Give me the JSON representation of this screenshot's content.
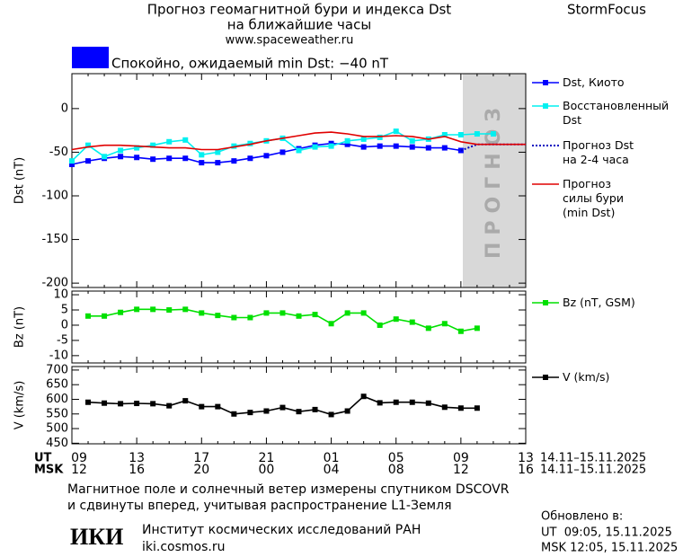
{
  "header": {
    "title_lines": [
      "Прогноз геомагнитной бури и индекса Dst",
      "на ближайшие часы"
    ],
    "site": "www.spaceweather.ru",
    "brand": "StormFocus",
    "status": "Спокойно, ожидаемый min Dst: −40 nT",
    "status_color": "#0000ff"
  },
  "forecast_label": "ПРОГНОЗ",
  "x_axis": {
    "rows": [
      {
        "name": "UT",
        "labels": [
          "09",
          null,
          null,
          null,
          "13",
          null,
          null,
          null,
          "17",
          null,
          null,
          null,
          "21",
          null,
          null,
          null,
          "01",
          null,
          null,
          null,
          "05",
          null,
          null,
          null,
          "09",
          null,
          null,
          null,
          "13"
        ],
        "range": "14.11–15.11.2025"
      },
      {
        "name": "MSK",
        "labels": [
          "12",
          null,
          null,
          null,
          "16",
          null,
          null,
          null,
          "20",
          null,
          null,
          null,
          "00",
          null,
          null,
          null,
          "04",
          null,
          null,
          null,
          "08",
          null,
          null,
          null,
          "12",
          null,
          null,
          null,
          "16"
        ],
        "range": "14.11–15.11.2025"
      }
    ]
  },
  "chart_data": [
    {
      "type": "line",
      "y_label": "Dst (nT)",
      "ylim": [
        -205,
        40
      ],
      "yticks": [
        0,
        -50,
        -100,
        -150,
        -200
      ],
      "series": [
        {
          "name": "Dst, Киото",
          "color": "#0000ff",
          "marker": "square",
          "line_style": "solid",
          "values": [
            -64,
            -60,
            -57,
            -55,
            -56,
            -58,
            -57,
            -57,
            -62,
            -62,
            -60,
            -57,
            -54,
            -50,
            -46,
            -42,
            -40,
            -41,
            -44,
            -43,
            -43,
            -44,
            -45,
            -45,
            -48,
            null,
            null,
            null,
            null
          ]
        },
        {
          "name": "Восстановленный\nDst",
          "color": "#00f0f0",
          "marker": "square",
          "line_style": "solid",
          "values": [
            -60,
            -42,
            -55,
            -48,
            -45,
            -42,
            -38,
            -36,
            -53,
            -50,
            -43,
            -40,
            -37,
            -34,
            -48,
            -44,
            -43,
            -37,
            -35,
            -33,
            -26,
            -37,
            -35,
            -30,
            -30,
            -29,
            -29,
            null,
            null
          ]
        },
        {
          "name": "Прогноз Dst\nна 2-4 часа",
          "color": "#0000c0",
          "marker": "none",
          "line_style": "dotted",
          "values": [
            null,
            null,
            null,
            null,
            null,
            null,
            null,
            null,
            null,
            null,
            null,
            null,
            null,
            null,
            null,
            null,
            null,
            null,
            null,
            null,
            null,
            null,
            null,
            null,
            -48,
            -41,
            -41,
            -41,
            -41
          ]
        },
        {
          "name": "Прогноз\nсилы бури\n(min Dst)",
          "color": "#e00000",
          "marker": "none",
          "line_style": "solid",
          "values": [
            -47,
            -44,
            -42,
            -42,
            -43,
            -44,
            -45,
            -45,
            -47,
            -47,
            -44,
            -41,
            -37,
            -34,
            -31,
            -28,
            -27,
            -29,
            -32,
            -32,
            -31,
            -32,
            -35,
            -32,
            -38,
            -41,
            -41,
            -41,
            -41
          ]
        }
      ]
    },
    {
      "type": "line",
      "y_label": "Bz (nT)",
      "ylim": [
        -12.4,
        11.2
      ],
      "yticks": [
        10,
        5,
        0,
        -5,
        -10
      ],
      "series": [
        {
          "name": "Bz (nT, GSM)",
          "color": "#00e000",
          "marker": "square",
          "line_style": "solid",
          "values": [
            null,
            3,
            3,
            4.2,
            5.2,
            5.2,
            5,
            5.2,
            4,
            3.2,
            2.5,
            2.5,
            4,
            4,
            3,
            3.5,
            0.5,
            4,
            4,
            0,
            2,
            1,
            -1,
            0.5,
            -2,
            -1,
            null,
            null,
            null
          ]
        }
      ]
    },
    {
      "type": "line",
      "y_label": "V (km/s)",
      "ylim": [
        448,
        712
      ],
      "yticks": [
        700,
        650,
        600,
        550,
        500,
        450
      ],
      "series": [
        {
          "name": "V (km/s)",
          "color": "#000000",
          "marker": "square",
          "line_style": "solid",
          "values": [
            null,
            590,
            587,
            585,
            586,
            585,
            578,
            595,
            575,
            575,
            550,
            555,
            560,
            572,
            558,
            565,
            548,
            560,
            610,
            588,
            590,
            590,
            587,
            573,
            570,
            570,
            null,
            null,
            null
          ]
        }
      ]
    }
  ],
  "footer": {
    "note_lines": [
      "Магнитное поле и солнечный ветер измерены спутником DSCOVR",
      "и сдвинуты вперед, учитывая распространение L1-Земля"
    ],
    "logo": "ИКИ",
    "institute": "Институт космических исследований РАН",
    "url": "iki.cosmos.ru",
    "updated_title": "Обновлено в:",
    "updated_lines": [
      "UT  09:05, 15.11.2025",
      "MSK 12:05, 15.11.2025"
    ]
  }
}
